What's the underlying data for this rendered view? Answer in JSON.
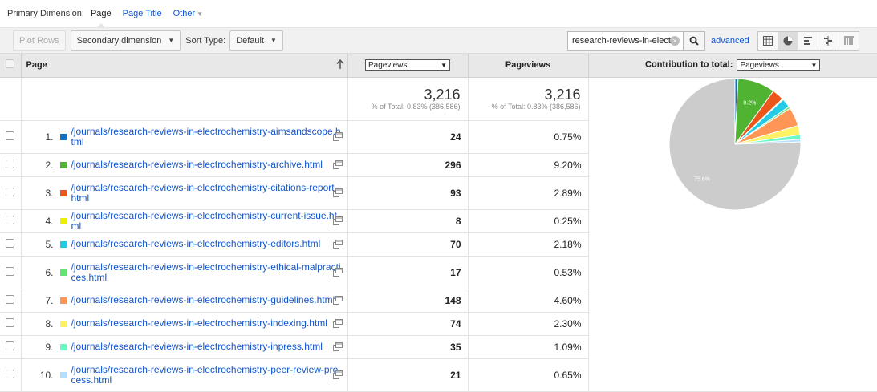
{
  "dimension_bar": {
    "label": "Primary Dimension:",
    "current": "Page",
    "page_title": "Page Title",
    "other": "Other"
  },
  "toolbar": {
    "plot_rows": "Plot Rows",
    "secondary_dimension": "Secondary dimension",
    "sort_type_label": "Sort Type:",
    "sort_value": "Default",
    "search_value": "research-reviews-in-electr",
    "advanced": "advanced"
  },
  "table": {
    "col_page": "Page",
    "col_metric_select": "Pageviews",
    "col_pageviews": "Pageviews",
    "col_contribution": "Contribution to total:",
    "col_contribution_select": "Pageviews",
    "totals": {
      "value1": "3,216",
      "sub1": "% of Total: 0.83% (386,586)",
      "value2": "3,216",
      "sub2": "% of Total: 0.83% (386,586)"
    },
    "rows": [
      {
        "idx": "1.",
        "page": "/journals/research-reviews-in-electrochemistry-aimsandscope.html",
        "views": "24",
        "pct": "0.75%",
        "color": "#0f72c4"
      },
      {
        "idx": "2.",
        "page": "/journals/research-reviews-in-electrochemistry-archive.html",
        "views": "296",
        "pct": "9.20%",
        "color": "#50b432"
      },
      {
        "idx": "3.",
        "page": "/journals/research-reviews-in-electrochemistry-citations-report.html",
        "views": "93",
        "pct": "2.89%",
        "color": "#ed561b"
      },
      {
        "idx": "4.",
        "page": "/journals/research-reviews-in-electrochemistry-current-issue.html",
        "views": "8",
        "pct": "0.25%",
        "color": "#edef00"
      },
      {
        "idx": "5.",
        "page": "/journals/research-reviews-in-electrochemistry-editors.html",
        "views": "70",
        "pct": "2.18%",
        "color": "#24cbe5"
      },
      {
        "idx": "6.",
        "page": "/journals/research-reviews-in-electrochemistry-ethical-malpractices.html",
        "views": "17",
        "pct": "0.53%",
        "color": "#64e572"
      },
      {
        "idx": "7.",
        "page": "/journals/research-reviews-in-electrochemistry-guidelines.html",
        "views": "148",
        "pct": "4.60%",
        "color": "#ff9655"
      },
      {
        "idx": "8.",
        "page": "/journals/research-reviews-in-electrochemistry-indexing.html",
        "views": "74",
        "pct": "2.30%",
        "color": "#fff263"
      },
      {
        "idx": "9.",
        "page": "/journals/research-reviews-in-electrochemistry-inpress.html",
        "views": "35",
        "pct": "1.09%",
        "color": "#6af9c4"
      },
      {
        "idx": "10.",
        "page": "/journals/research-reviews-in-electrochemistry-peer-review-process.html",
        "views": "21",
        "pct": "0.65%",
        "color": "#b2deff"
      }
    ]
  },
  "pie": {
    "other_color": "#cccccc",
    "other_pct": 75.6,
    "label_big": "9.2%",
    "label_other": "75.6%"
  }
}
